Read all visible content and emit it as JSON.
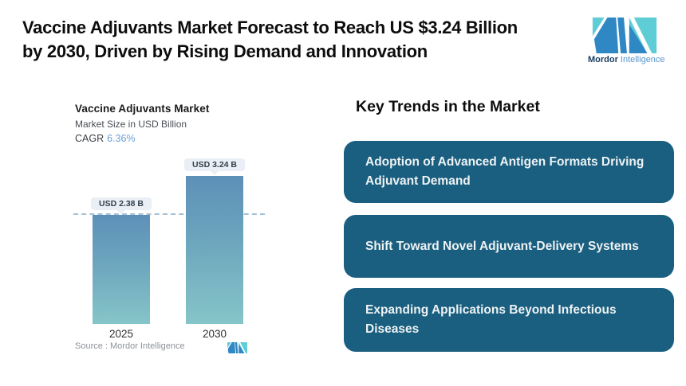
{
  "header": {
    "title_line1": "Vaccine Adjuvants Market Forecast to Reach US $3.24 Billion",
    "title_line2": "by 2030, Driven by Rising Demand and Innovation"
  },
  "brand": {
    "name_bold": "Mordor",
    "name_light": "Intelligence",
    "logo_blue": "#2f87c3",
    "logo_teal": "#5fcdd5"
  },
  "chart_data": {
    "type": "bar",
    "title": "Vaccine Adjuvants Market",
    "subtitle": "Market Size in USD Billion",
    "cagr_label": "CAGR",
    "cagr_value": "6.36%",
    "categories": [
      "2025",
      "2030"
    ],
    "values": [
      2.38,
      3.24
    ],
    "value_labels": [
      "USD 2.38 B",
      "USD 3.24 B"
    ],
    "ylim": [
      0,
      3.24
    ],
    "grid": false,
    "reference_line_value": 2.38,
    "legend": "none",
    "bar_color_top": "#5d90b8",
    "bar_color_bottom": "#85c5c8",
    "source": "Source :  Mordor Intelligence"
  },
  "trends": {
    "heading": "Key Trends in the Market",
    "box_color": "#1a5f80",
    "items": [
      {
        "text": "Adoption of Advanced Antigen Formats Driving Adjuvant Demand"
      },
      {
        "text": "Shift Toward Novel Adjuvant-Delivery Systems"
      },
      {
        "text": "Expanding Applications Beyond Infectious Diseases"
      }
    ]
  }
}
